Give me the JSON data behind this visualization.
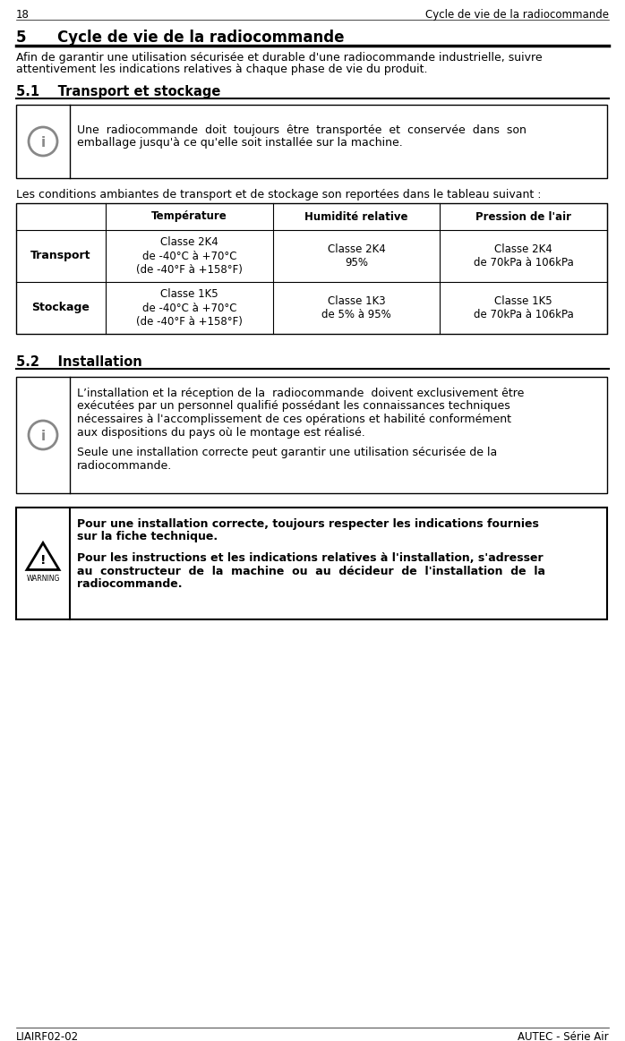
{
  "page_number": "18",
  "header_right": "Cycle de vie de la radiocommande",
  "footer_left": "LIAIRF02-02",
  "footer_right": "AUTEC - Série Air",
  "section5_title": "5      Cycle de vie de la radiocommande",
  "section5_intro_1": "Afin de garantir une utilisation sécurisée et durable d'une radiocommande industrielle, suivre",
  "section5_intro_2": "attentivement les indications relatives à chaque phase de vie du produit.",
  "section51_title": "5.1    Transport et stockage",
  "info_box1_line1": "Une  radiocommande  doit  toujours  être  transportée  et  conservée  dans  son",
  "info_box1_line2": "emballage jusqu'à ce qu'elle soit installée sur la machine.",
  "table_intro": "Les conditions ambiantes de transport et de stockage son reportées dans le tableau suivant :",
  "table_header": [
    "Température",
    "Humidité relative",
    "Pression de l'air"
  ],
  "table_row1_label": "Transport",
  "table_row1_col1": "Classe 2K4\nde -40°C à +70°C\n(de -40°F à +158°F)",
  "table_row1_col2": "Classe 2K4\n95%",
  "table_row1_col3": "Classe 2K4\nde 70kPa à 106kPa",
  "table_row2_label": "Stockage",
  "table_row2_col1": "Classe 1K5\nde -40°C à +70°C\n(de -40°F à +158°F)",
  "table_row2_col2": "Classe 1K3\nde 5% à 95%",
  "table_row2_col3": "Classe 1K5\nde 70kPa à 106kPa",
  "section52_title": "5.2    Installation",
  "info_box2_lines": [
    "L’installation et la réception de la  radiocommande  doivent exclusivement être",
    "exécutées par un personnel qualifié possédant les connaissances techniques",
    "nécessaires à l'accomplissement de ces opérations et habilité conformément",
    "aux dispositions du pays où le montage est réalisé.",
    "",
    "Seule une installation correcte peut garantir une utilisation sécurisée de la",
    "radiocommande."
  ],
  "warn_bold_lines": [
    "Pour une installation correcte, toujours respecter les indications fournies",
    "sur la fiche technique."
  ],
  "warn_normal_lines": [
    "Pour les instructions et les indications relatives à l'installation, s'adresser",
    "au  constructeur  de  la  machine  ou  au  décideur  de  l'installation  de  la",
    "radiocommande."
  ]
}
